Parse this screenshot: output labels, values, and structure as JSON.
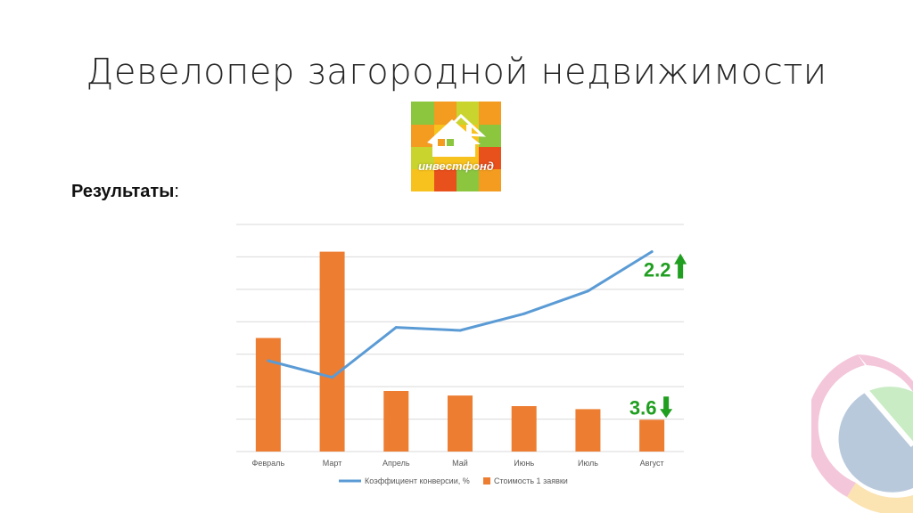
{
  "slide": {
    "title": "Девелопер загородной недвижимости",
    "results_label": "Результаты",
    "results_colon": ":"
  },
  "logo": {
    "text": "инвестфонд",
    "colors": [
      "#f7c21d",
      "#8cc63f",
      "#f39c1f",
      "#e8501c",
      "#c9d42e"
    ]
  },
  "colors": {
    "line": "#5b9bd5",
    "bar": "#ed7d31",
    "up_arrow": "#1f9e1f",
    "down_arrow": "#1f9e1f",
    "grid": "#d9d9d9"
  },
  "chart_data": {
    "type": "bar",
    "categories": [
      "Февраль",
      "Март",
      "Апрель",
      "Май",
      "Июнь",
      "Июль",
      "Август"
    ],
    "series": [
      {
        "name": "Коэффициент конверсии, %",
        "type": "line",
        "values": [
          3.0,
          2.45,
          4.1,
          4.0,
          4.55,
          5.3,
          6.6
        ]
      },
      {
        "name": "Стоимость 1 заявки",
        "type": "bar",
        "values": [
          3.75,
          6.6,
          2.0,
          1.85,
          1.5,
          1.4,
          1.05
        ]
      }
    ],
    "ylim": [
      0,
      7.5
    ],
    "grid": true,
    "legend": "bottom",
    "annotations": [
      {
        "text": "2.2",
        "direction": "up",
        "category": "Август",
        "series": "Коэффициент конверсии, %"
      },
      {
        "text": "3.6",
        "direction": "down",
        "category": "Август",
        "series": "Стоимость 1 заявки"
      }
    ]
  }
}
